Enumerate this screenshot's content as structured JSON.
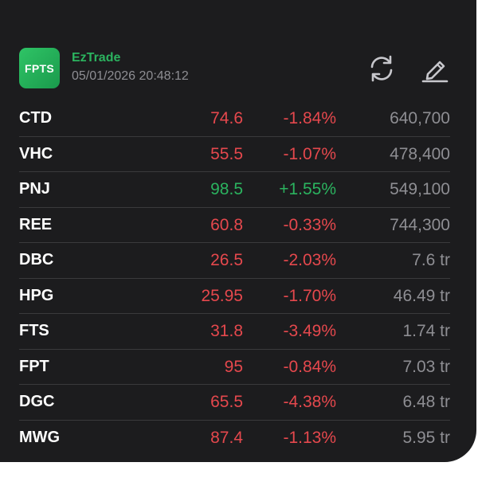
{
  "app": {
    "logo_text": "FPTS",
    "name": "EzTrade",
    "timestamp": "05/01/2026 20:48:12"
  },
  "icons": {
    "refresh": "refresh-icon",
    "edit": "edit-pen-icon"
  },
  "colors": {
    "background": "#1c1c1e",
    "down": "#e5484d",
    "up": "#2bb35f",
    "muted": "#8e8e93",
    "brand": "#2bb35f"
  },
  "stocks": [
    {
      "symbol": "CTD",
      "price": "74.6",
      "change": "-1.84%",
      "volume": "640,700",
      "direction": "down"
    },
    {
      "symbol": "VHC",
      "price": "55.5",
      "change": "-1.07%",
      "volume": "478,400",
      "direction": "down"
    },
    {
      "symbol": "PNJ",
      "price": "98.5",
      "change": "+1.55%",
      "volume": "549,100",
      "direction": "up"
    },
    {
      "symbol": "REE",
      "price": "60.8",
      "change": "-0.33%",
      "volume": "744,300",
      "direction": "down"
    },
    {
      "symbol": "DBC",
      "price": "26.5",
      "change": "-2.03%",
      "volume": "7.6 tr",
      "direction": "down"
    },
    {
      "symbol": "HPG",
      "price": "25.95",
      "change": "-1.70%",
      "volume": "46.49 tr",
      "direction": "down"
    },
    {
      "symbol": "FTS",
      "price": "31.8",
      "change": "-3.49%",
      "volume": "1.74 tr",
      "direction": "down"
    },
    {
      "symbol": "FPT",
      "price": "95",
      "change": "-0.84%",
      "volume": "7.03 tr",
      "direction": "down"
    },
    {
      "symbol": "DGC",
      "price": "65.5",
      "change": "-4.38%",
      "volume": "6.48 tr",
      "direction": "down"
    },
    {
      "symbol": "MWG",
      "price": "87.4",
      "change": "-1.13%",
      "volume": "5.95 tr",
      "direction": "down"
    }
  ]
}
